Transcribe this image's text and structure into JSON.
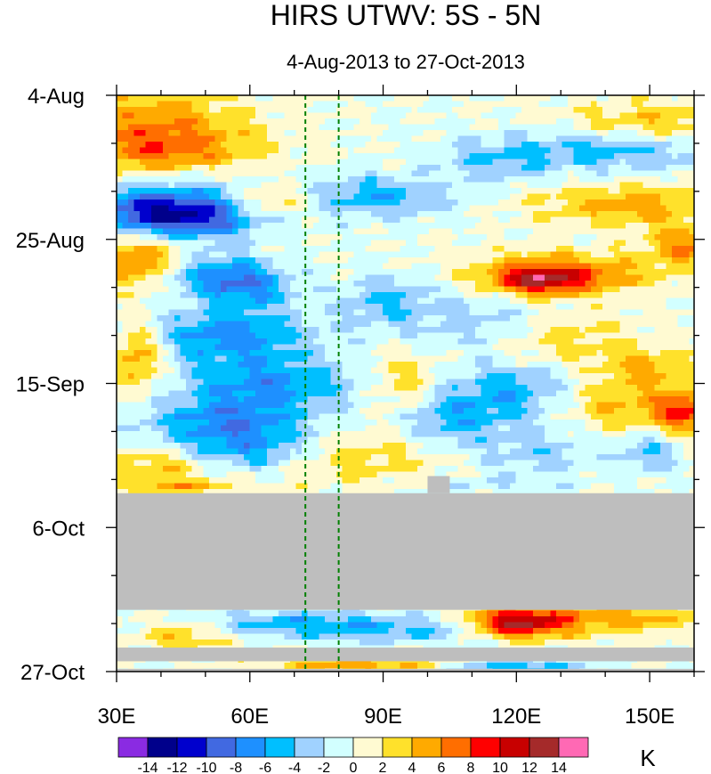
{
  "chart_data": {
    "type": "heatmap",
    "title": "HIRS UTWV: 5S - 5N",
    "subtitle": "4-Aug-2013 to 27-Oct-2013",
    "x_axis": {
      "range": [
        30,
        160
      ],
      "ticks": [
        {
          "value": 30,
          "label": "30E"
        },
        {
          "value": 60,
          "label": "60E"
        },
        {
          "value": 90,
          "label": "90E"
        },
        {
          "value": 120,
          "label": "120E"
        },
        {
          "value": 150,
          "label": "150E"
        }
      ]
    },
    "y_axis": {
      "range_days": [
        0,
        84
      ],
      "start_date": "4-Aug-2013",
      "ticks": [
        {
          "day": 0,
          "label": "4-Aug"
        },
        {
          "day": 21,
          "label": "25-Aug"
        },
        {
          "day": 42,
          "label": "15-Sep"
        },
        {
          "day": 63,
          "label": "6-Oct"
        },
        {
          "day": 84,
          "label": "27-Oct"
        }
      ]
    },
    "reference_lines_lon": [
      72.5,
      80
    ],
    "missing_data_periods_days": [
      [
        58,
        75
      ],
      [
        80.5,
        82.5
      ],
      [
        82.5,
        84
      ]
    ],
    "colorbar": {
      "unit": "K",
      "levels": [
        "-14",
        "-12",
        "-10",
        "-8",
        "-6",
        "-4",
        "-2",
        "0",
        "2",
        "4",
        "6",
        "8",
        "10",
        "12",
        "14"
      ],
      "colors": [
        "#8a2be2",
        "#00008b",
        "#0000cd",
        "#4169e1",
        "#1e90ff",
        "#00bfff",
        "#a0d2ff",
        "#d2ffff",
        "#fffad2",
        "#ffe12b",
        "#ffaa00",
        "#ff6e00",
        "#ff0000",
        "#c80000",
        "#a52a2a",
        "#ff69b4"
      ]
    },
    "colors": {
      "missing": "#bebebe",
      "reference_line": "#008000"
    }
  }
}
